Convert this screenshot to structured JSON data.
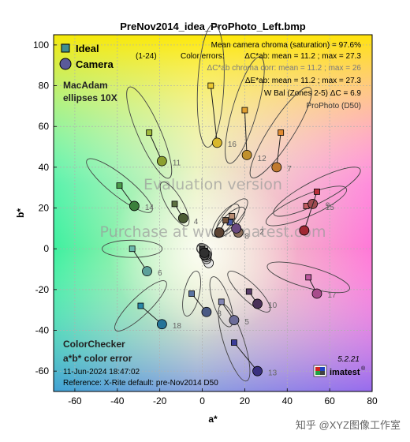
{
  "chart_data": {
    "type": "scatter",
    "title": "PreNov2014_idea_ProPhoto_Left.bmp",
    "xlabel": "a*",
    "ylabel": "b*",
    "xlim": [
      -70,
      80
    ],
    "ylim": [
      -70,
      105
    ],
    "xticks": [
      -60,
      -40,
      -20,
      0,
      20,
      40,
      60,
      80
    ],
    "yticks": [
      -60,
      -40,
      -20,
      0,
      20,
      40,
      60,
      80,
      100
    ],
    "grid": true,
    "legend": {
      "placement": "top-left",
      "entries": [
        "Ideal",
        "Camera"
      ],
      "range_label": "(1-24)"
    },
    "ellipses_label": "MacAdam\nellipses 10X",
    "patches": [
      {
        "id": "2",
        "ideal": [
          14,
          16
        ],
        "camera": [
          17,
          8
        ],
        "ideal_color": "#b98c73",
        "camera_color": "#8c6f5c",
        "label_pos": [
          27,
          7
        ]
      },
      {
        "id": "3",
        "ideal": [
          -5,
          -22
        ],
        "camera": [
          2,
          -31
        ],
        "ideal_color": "#5a73a0",
        "camera_color": "#4a5a84",
        "label_pos": [
          7,
          -33
        ]
      },
      {
        "id": "4",
        "ideal": [
          -13,
          22
        ],
        "camera": [
          -9,
          15
        ],
        "ideal_color": "#5c7040",
        "camera_color": "#4c5c34",
        "label_pos": [
          -4,
          12
        ]
      },
      {
        "id": "5",
        "ideal": [
          9,
          -26
        ],
        "camera": [
          15,
          -35
        ],
        "ideal_color": "#8284b2",
        "camera_color": "#6c6c98",
        "label_pos": [
          20,
          -37
        ]
      },
      {
        "id": "6",
        "ideal": [
          -33,
          0
        ],
        "camera": [
          -26,
          -11
        ],
        "ideal_color": "#6cb8ac",
        "camera_color": "#5ca09a",
        "label_pos": [
          -21,
          -13
        ]
      },
      {
        "id": "7",
        "ideal": [
          37,
          57
        ],
        "camera": [
          35,
          40
        ],
        "ideal_color": "#e08a30",
        "camera_color": "#c07a30",
        "label_pos": [
          40,
          38
        ]
      },
      {
        "id": "8",
        "ideal": [
          13,
          13
        ],
        "camera": [
          16,
          10
        ],
        "ideal_color": "#4a5aa8",
        "camera_color": "#6a4a80",
        "label_pos": [
          20,
          5
        ]
      },
      {
        "id": "9",
        "ideal": [
          49,
          21
        ],
        "camera": [
          52,
          22
        ],
        "ideal_color": "#c05a60",
        "camera_color": "#a04a50",
        "label_pos": [
          58,
          20
        ]
      },
      {
        "id": "10",
        "ideal": [
          22,
          -21
        ],
        "camera": [
          26,
          -27
        ],
        "ideal_color": "#5a3c6a",
        "camera_color": "#4a3058",
        "label_pos": [
          31,
          -29
        ]
      },
      {
        "id": "11",
        "ideal": [
          -25,
          57
        ],
        "camera": [
          -19,
          43
        ],
        "ideal_color": "#a0ba3c",
        "camera_color": "#8ca030",
        "label_pos": [
          -14,
          41
        ]
      },
      {
        "id": "12",
        "ideal": [
          20,
          68
        ],
        "camera": [
          21,
          46
        ],
        "ideal_color": "#e0a030",
        "camera_color": "#c0902c",
        "label_pos": [
          26,
          43
        ]
      },
      {
        "id": "13",
        "ideal": [
          15,
          -46
        ],
        "camera": [
          26,
          -60
        ],
        "ideal_color": "#3a3c98",
        "camera_color": "#3a3080",
        "label_pos": [
          31,
          -62
        ]
      },
      {
        "id": "14",
        "ideal": [
          -39,
          31
        ],
        "camera": [
          -32,
          21
        ],
        "ideal_color": "#4a9a4a",
        "camera_color": "#3c803c",
        "label_pos": [
          -27,
          19
        ]
      },
      {
        "id": "15",
        "ideal": [
          54,
          28
        ],
        "camera": [
          48,
          9
        ],
        "ideal_color": "#b8303c",
        "camera_color": "#a02834",
        "label_pos": [
          58,
          19
        ]
      },
      {
        "id": "16",
        "ideal": [
          4,
          80
        ],
        "camera": [
          7,
          52
        ],
        "ideal_color": "#ecc830",
        "camera_color": "#d8b82c",
        "label_pos": [
          12,
          50
        ]
      },
      {
        "id": "17",
        "ideal": [
          50,
          -14
        ],
        "camera": [
          54,
          -22
        ],
        "ideal_color": "#c058a0",
        "camera_color": "#a84c8c",
        "label_pos": [
          59,
          -24
        ]
      },
      {
        "id": "18",
        "ideal": [
          -29,
          -28
        ],
        "camera": [
          -19,
          -37
        ],
        "ideal_color": "#2a88a8",
        "camera_color": "#247498",
        "label_pos": [
          -14,
          -39
        ]
      },
      {
        "id": "1",
        "ideal": [
          11,
          14
        ],
        "camera": [
          8,
          8
        ],
        "ideal_color": "#74543c",
        "camera_color": "#5c4434",
        "label_pos": [
          0,
          0
        ]
      },
      {
        "id": "19",
        "ideal": [
          0,
          0
        ],
        "camera": [
          3,
          -7
        ],
        "ideal_color": "#f2f2f2",
        "camera_color": "#e6e6e6",
        "label_pos": [
          0,
          0
        ]
      },
      {
        "id": "20",
        "ideal": [
          1,
          -1
        ],
        "camera": [
          2,
          -5
        ],
        "ideal_color": "#c8c8c8",
        "camera_color": "#c0c0c0",
        "label_pos": [
          0,
          0
        ]
      },
      {
        "id": "21",
        "ideal": [
          0,
          0
        ],
        "camera": [
          2,
          -4
        ],
        "ideal_color": "#a0a0a0",
        "camera_color": "#989898",
        "label_pos": [
          0,
          0
        ]
      },
      {
        "id": "22",
        "ideal": [
          0,
          0
        ],
        "camera": [
          2,
          -3
        ],
        "ideal_color": "#7a7a7a",
        "camera_color": "#747474",
        "label_pos": [
          0,
          0
        ]
      },
      {
        "id": "23",
        "ideal": [
          0,
          0
        ],
        "camera": [
          1,
          -3
        ],
        "ideal_color": "#555555",
        "camera_color": "#505050",
        "label_pos": [
          0,
          0
        ]
      },
      {
        "id": "24",
        "ideal": [
          0,
          0
        ],
        "camera": [
          1,
          -2
        ],
        "ideal_color": "#343434",
        "camera_color": "#303030",
        "label_pos": [
          0,
          0
        ]
      }
    ],
    "stats": {
      "mean_chroma": "Mean camera chroma (saturation) = 97.6%",
      "color_errors_label": "Color errors:",
      "dc_line": "ΔC*ab:  mean = 11.2 ;  max = 27.3",
      "dc_corr_line": "ΔC*ab chroma corr:  mean = 11.2 ;  max = 26",
      "de_line": "ΔE*ab:  mean = 11.2 ;  max = 27.3",
      "wbal": "W Bal (Zones 2-5)  ΔC = 6.9",
      "space": "ProPhoto (D50)"
    },
    "watermarks": [
      "Evaluation version",
      "Purchase at www.imatest.com"
    ],
    "footer": {
      "title1": "ColorChecker",
      "title2": "a*b* color error",
      "date": "11-Jun-2024 18:47:02",
      "reference": "Reference: X-Rite default:  pre-Nov2014  D50",
      "version": "5.2.21",
      "brand": "imatest",
      "source": "知乎 @XYZ图像工作室"
    }
  }
}
